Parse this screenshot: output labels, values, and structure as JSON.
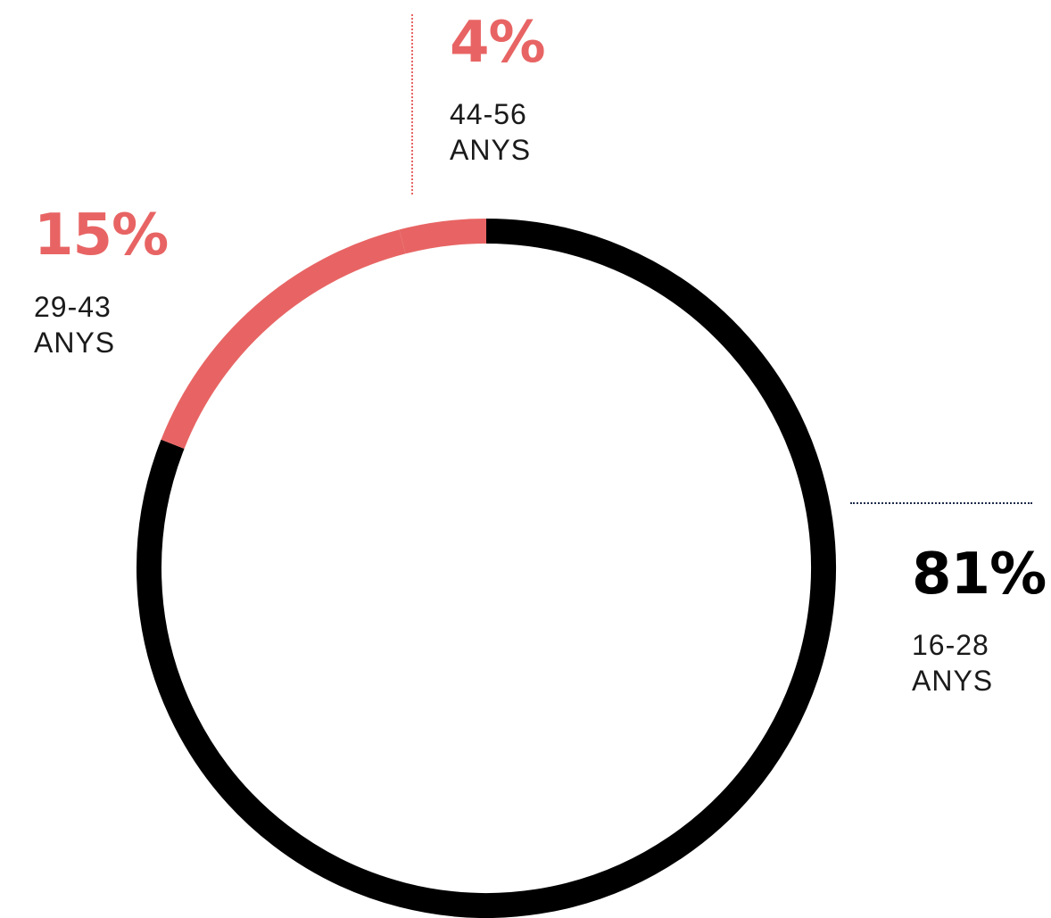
{
  "chart_data": {
    "type": "pie",
    "variant": "donut",
    "categories": [
      "16-28 ANYS",
      "29-43 ANYS",
      "44-56 ANYS"
    ],
    "values": [
      81,
      15,
      4
    ],
    "labels": [
      {
        "percent": "81%",
        "range": "16-28",
        "unit": "ANYS"
      },
      {
        "percent": "15%",
        "range": "29-43",
        "unit": "ANYS"
      },
      {
        "percent": "4%",
        "range": "44-56",
        "unit": "ANYS"
      }
    ],
    "colors": [
      "#000000",
      "#e86464",
      "#e86464"
    ],
    "legend": "none"
  },
  "colors": {
    "accent": "#e86464",
    "primary": "#000000",
    "leader_dark": "#1d2b4a"
  }
}
